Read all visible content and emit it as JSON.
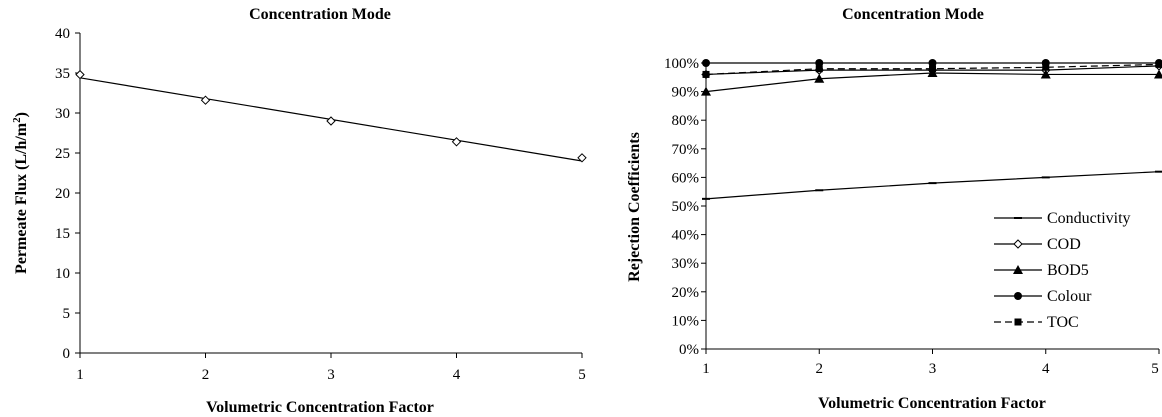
{
  "chart_data": [
    {
      "type": "scatter",
      "title": "Concentration Mode",
      "xlabel": "Volumetric Concentration Factor",
      "ylabel": "Permeate Flux (L/h/m",
      "ylabel_sup": "2",
      "ylabel_close": ")",
      "x": [
        1,
        2,
        3,
        4,
        5
      ],
      "y": [
        34.8,
        31.6,
        29.0,
        26.4,
        24.4
      ],
      "trendline": {
        "x": [
          1,
          5
        ],
        "y": [
          34.4,
          24.0
        ]
      },
      "xlim": [
        1,
        5
      ],
      "ylim": [
        0,
        40
      ],
      "xticks": [
        "1",
        "2",
        "3",
        "4",
        "5"
      ],
      "yticks": [
        "0",
        "5",
        "10",
        "15",
        "20",
        "25",
        "30",
        "35",
        "40"
      ],
      "marker": "open-diamond",
      "grid": false
    },
    {
      "type": "line",
      "title": "Concentration Mode",
      "xlabel": "Volumetric Concentration Factor",
      "ylabel": "Rejection Coefficients",
      "x": [
        1,
        2,
        3,
        4,
        5
      ],
      "xlim": [
        1,
        5
      ],
      "ylim": [
        0,
        100
      ],
      "xticks": [
        "1",
        "2",
        "3",
        "4",
        "5"
      ],
      "yticks": [
        "0%",
        "10%",
        "20%",
        "30%",
        "40%",
        "50%",
        "60%",
        "70%",
        "80%",
        "90%",
        "100%"
      ],
      "legend_position": "bottom-right",
      "grid": false,
      "series": [
        {
          "name": "Conductivity",
          "marker": "dash",
          "style": "solid",
          "values": [
            52.5,
            55.5,
            58,
            60,
            62
          ]
        },
        {
          "name": "COD",
          "marker": "open-diamond",
          "style": "solid",
          "values": [
            96,
            97.5,
            97.5,
            97.5,
            99
          ]
        },
        {
          "name": "BOD5",
          "marker": "filled-triangle",
          "style": "solid",
          "values": [
            90,
            94.5,
            96.5,
            96,
            96
          ]
        },
        {
          "name": "Colour",
          "marker": "filled-circle",
          "style": "solid",
          "values": [
            100,
            100,
            100,
            100,
            100
          ]
        },
        {
          "name": "TOC",
          "marker": "filled-square",
          "style": "dashed",
          "values": [
            96,
            98,
            98,
            98.5,
            99.5
          ]
        }
      ]
    }
  ]
}
